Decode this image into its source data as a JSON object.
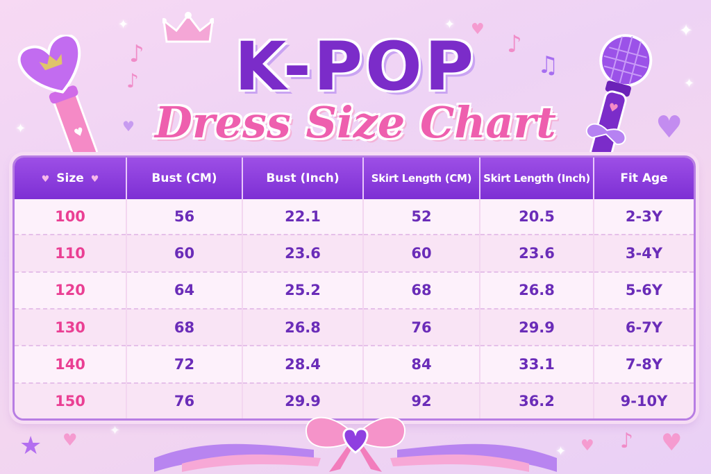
{
  "title": {
    "line1": "K-POP",
    "line2": "Dress Size Chart"
  },
  "table": {
    "headers": [
      "Size",
      "Bust (CM)",
      "Bust (Inch)",
      "Skirt Length (CM)",
      "Skirt Length (Inch)",
      "Fit Age"
    ],
    "rows": [
      [
        "100",
        "56",
        "22.1",
        "52",
        "20.5",
        "2-3Y"
      ],
      [
        "110",
        "60",
        "23.6",
        "60",
        "23.6",
        "3-4Y"
      ],
      [
        "120",
        "64",
        "25.2",
        "68",
        "26.8",
        "5-6Y"
      ],
      [
        "130",
        "68",
        "26.8",
        "76",
        "29.9",
        "6-7Y"
      ],
      [
        "140",
        "72",
        "28.4",
        "84",
        "33.1",
        "7-8Y"
      ],
      [
        "150",
        "76",
        "29.9",
        "92",
        "36.2",
        "9-10Y"
      ]
    ]
  },
  "icons": [
    "crown-icon",
    "heart-lightstick-icon",
    "microphone-icon",
    "music-note-icon",
    "heart-icon",
    "sparkle-icon",
    "bow-icon",
    "star-icon"
  ],
  "colors": {
    "purple": "#7b2cc9",
    "pink": "#ee5fae",
    "header_bg": "#8a3ddb",
    "background": "#f3d6f0"
  }
}
